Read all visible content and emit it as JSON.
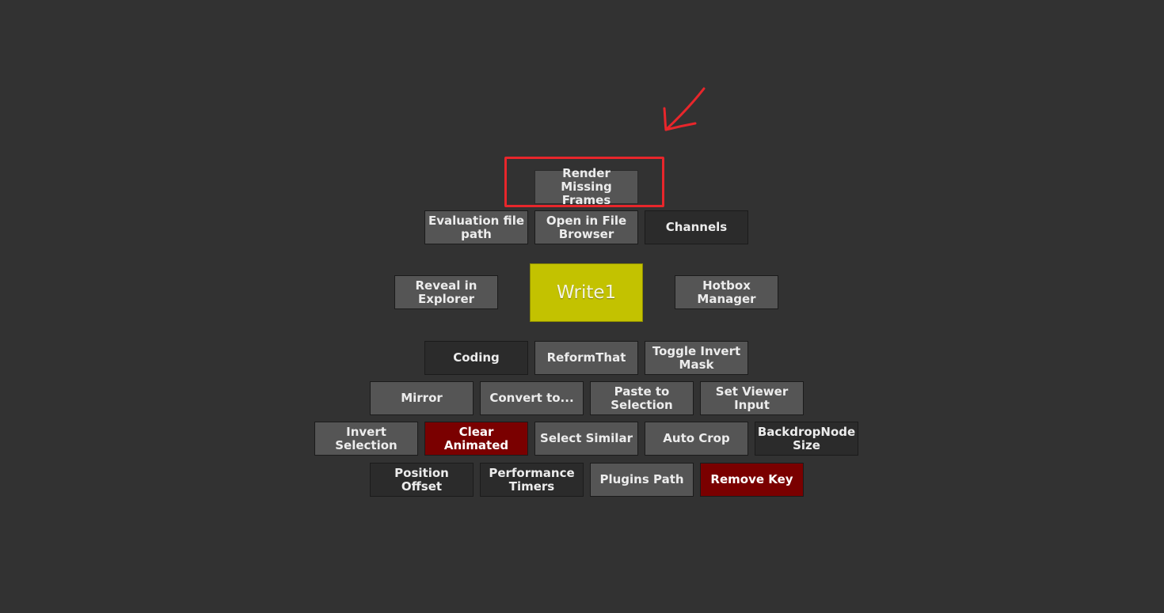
{
  "hotbox": {
    "node_label": "Write1",
    "buttons": {
      "render_missing_frames": "Render Missing Frames",
      "evaluation_file_path": "Evaluation file path",
      "open_in_file_browser": "Open in File Browser",
      "channels": "Channels",
      "reveal_in_explorer": "Reveal in Explorer",
      "hotbox_manager": "Hotbox Manager",
      "coding": "Coding",
      "reformthat": "ReformThat",
      "toggle_invert_mask": "Toggle Invert Mask",
      "mirror": "Mirror",
      "convert_to": "Convert to...",
      "paste_to_selection": "Paste to Selection",
      "set_viewer_input": "Set Viewer Input",
      "invert_selection": "Invert Selection",
      "clear_animated": "Clear Animated",
      "select_similar": "Select Similar",
      "auto_crop": "Auto Crop",
      "backdropnode_size": "BackdropNode Size",
      "position_offset": "Position Offset",
      "performance_timers": "Performance Timers",
      "plugins_path": "Plugins Path",
      "remove_key": "Remove Key"
    }
  },
  "annotation": {
    "color": "#e8262b",
    "highlight_target": "Render Missing Frames"
  },
  "colors": {
    "background": "#323232",
    "button_light": "#555555",
    "button_dark": "#2b2b2b",
    "button_red": "#7a0000",
    "node": "#c3c200"
  }
}
